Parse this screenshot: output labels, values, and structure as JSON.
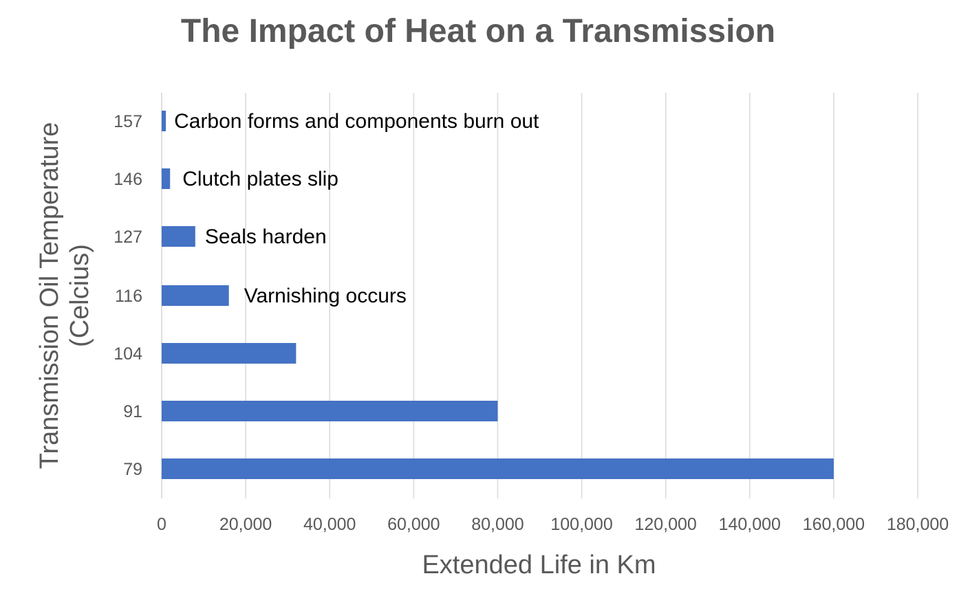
{
  "chart_data": {
    "type": "bar",
    "orientation": "horizontal",
    "title": "The Impact of Heat on a Transmission",
    "xlabel": "Extended Life in Km",
    "ylabel_lines": [
      "Transmission Oil Temperature",
      "(Celcius)"
    ],
    "categories": [
      "79",
      "91",
      "104",
      "116",
      "127",
      "146",
      "157"
    ],
    "values": [
      160000,
      80000,
      32000,
      16000,
      8000,
      2000,
      1000
    ],
    "xlim": [
      0,
      180000
    ],
    "xticks": [
      0,
      20000,
      40000,
      60000,
      80000,
      100000,
      120000,
      140000,
      160000,
      180000
    ],
    "xtick_labels": [
      "0",
      "20,000",
      "40,000",
      "60,000",
      "80,000",
      "100,000",
      "120,000",
      "140,000",
      "160,000",
      "180,000"
    ],
    "grid": "vertical",
    "legend": "none",
    "bar_color": "#4472C4",
    "annotations": [
      {
        "category": "157",
        "text": "Carbon forms and components burn out"
      },
      {
        "category": "146",
        "text": "Clutch plates slip"
      },
      {
        "category": "127",
        "text": "Seals harden"
      },
      {
        "category": "116",
        "text": "Varnishing occurs"
      }
    ]
  }
}
